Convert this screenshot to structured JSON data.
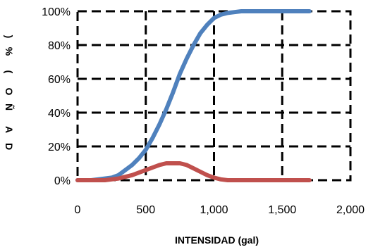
{
  "chart_data": {
    "type": "line",
    "title": "",
    "xlabel": "INTENSIDAD (gal)",
    "ylabel_glyphs": [
      ")",
      "%",
      "(",
      "O",
      "Ñ",
      "A",
      "D"
    ],
    "xlim": [
      0,
      2000
    ],
    "ylim": [
      0,
      100
    ],
    "x_ticks": [
      0,
      500,
      1000,
      1500,
      2000
    ],
    "x_tick_labels": [
      "0",
      "500",
      "1,000",
      "1,500",
      "2,000"
    ],
    "y_ticks": [
      0,
      20,
      40,
      60,
      80,
      100
    ],
    "y_tick_labels": [
      "0%",
      "20%",
      "40%",
      "60%",
      "80%",
      "100%"
    ],
    "grid": true,
    "series": [
      {
        "color": "#4f81bd",
        "points": [
          [
            0,
            0
          ],
          [
            100,
            0
          ],
          [
            150,
            0.5
          ],
          [
            200,
            1
          ],
          [
            250,
            1.5
          ],
          [
            300,
            3
          ],
          [
            350,
            6
          ],
          [
            400,
            9
          ],
          [
            450,
            13
          ],
          [
            500,
            18
          ],
          [
            550,
            25
          ],
          [
            600,
            33
          ],
          [
            650,
            42
          ],
          [
            700,
            52
          ],
          [
            750,
            63
          ],
          [
            800,
            72
          ],
          [
            850,
            80
          ],
          [
            900,
            87
          ],
          [
            950,
            92
          ],
          [
            1000,
            96
          ],
          [
            1050,
            98
          ],
          [
            1100,
            99
          ],
          [
            1150,
            99.5
          ],
          [
            1200,
            100
          ],
          [
            1300,
            100
          ],
          [
            1400,
            100
          ],
          [
            1500,
            100
          ],
          [
            1600,
            100
          ],
          [
            1700,
            100
          ]
        ]
      },
      {
        "color": "#c0504d",
        "points": [
          [
            0,
            0
          ],
          [
            200,
            0
          ],
          [
            250,
            0.5
          ],
          [
            300,
            1
          ],
          [
            350,
            2
          ],
          [
            400,
            3
          ],
          [
            450,
            4.5
          ],
          [
            500,
            6
          ],
          [
            550,
            7.5
          ],
          [
            600,
            9
          ],
          [
            650,
            10
          ],
          [
            700,
            10
          ],
          [
            750,
            10
          ],
          [
            800,
            9
          ],
          [
            850,
            7
          ],
          [
            900,
            5
          ],
          [
            950,
            3
          ],
          [
            1000,
            1.5
          ],
          [
            1050,
            0.5
          ],
          [
            1100,
            0
          ],
          [
            1200,
            0
          ],
          [
            1300,
            0
          ],
          [
            1400,
            0
          ],
          [
            1500,
            0
          ],
          [
            1600,
            0
          ],
          [
            1700,
            0
          ]
        ]
      }
    ]
  }
}
